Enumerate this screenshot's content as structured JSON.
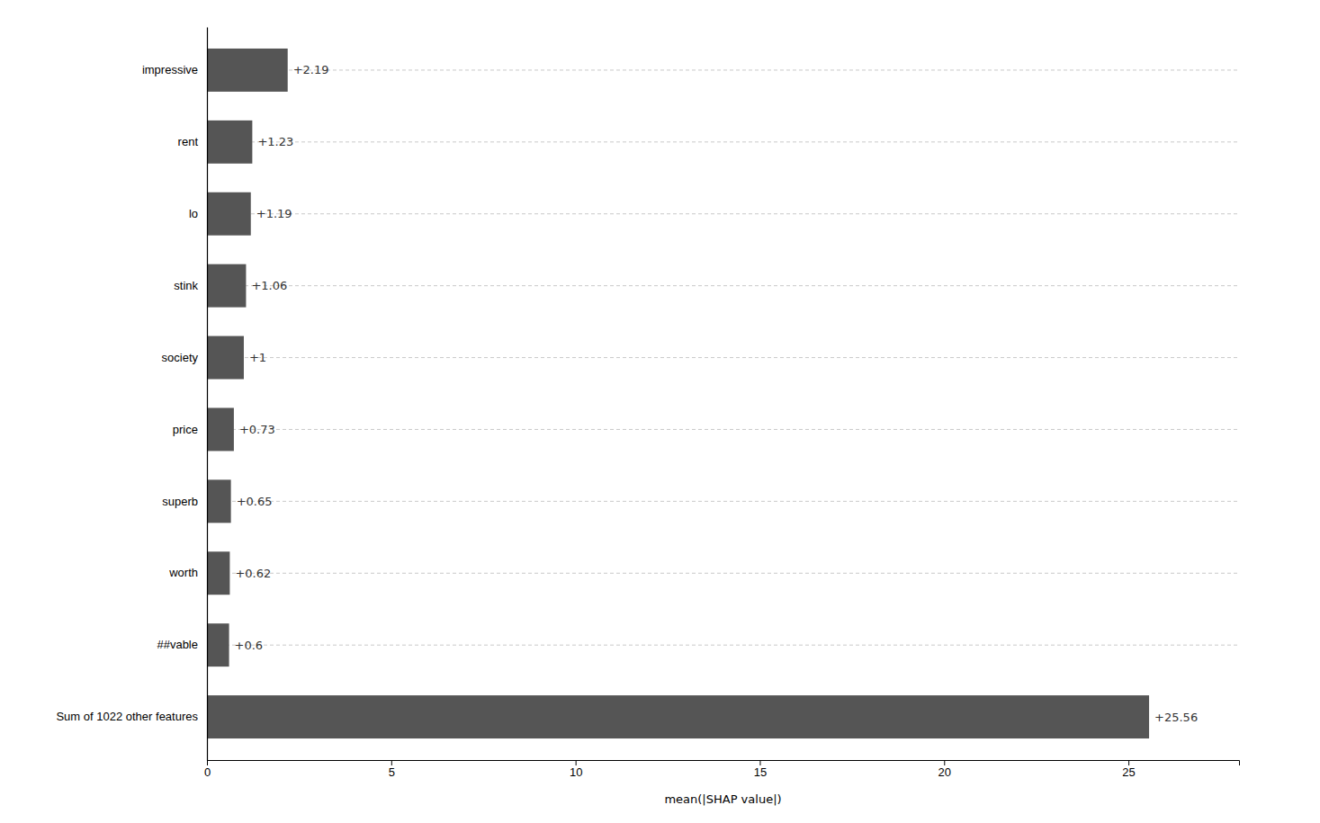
{
  "chart_data": {
    "type": "bar",
    "orientation": "horizontal",
    "categories": [
      "Sum of 1022 other features",
      "##vable",
      "worth",
      "superb",
      "price",
      "society",
      "stink",
      "lo",
      "rent",
      "impressive"
    ],
    "values": [
      25.56,
      0.6,
      0.62,
      0.65,
      0.73,
      1.0,
      1.06,
      1.19,
      1.23,
      2.19
    ],
    "value_labels": [
      "+25.56",
      "+0.6",
      "+0.62",
      "+0.65",
      "+0.73",
      "+1",
      "+1.06",
      "+1.19",
      "+1.23",
      "+2.19"
    ],
    "data_labels": true,
    "color": "#555555",
    "xlabel": "mean(|SHAP value|)",
    "xlim": [
      0,
      28
    ],
    "xticks": [
      0,
      5,
      10,
      15,
      20,
      25
    ],
    "grid": true
  }
}
